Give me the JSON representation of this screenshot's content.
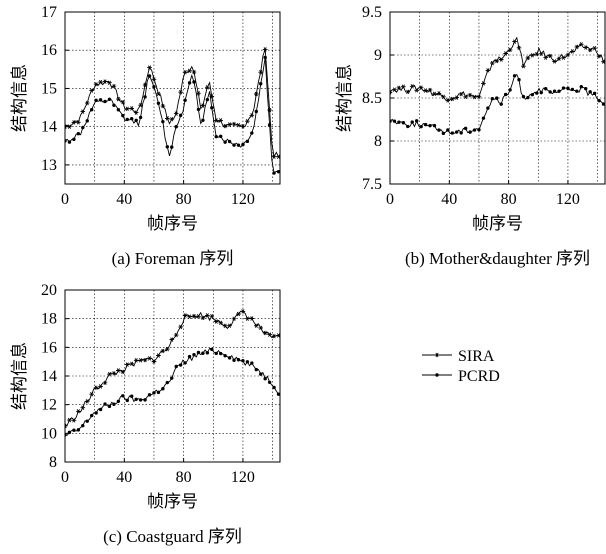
{
  "ylabel": "结构信息",
  "xlabel": "帧序号",
  "legend": {
    "entries": [
      {
        "label": "SIRA",
        "marker": "star"
      },
      {
        "label": "PCRD",
        "marker": "dot"
      }
    ]
  },
  "chart_data": [
    {
      "type": "line",
      "caption": "(a) Foreman 序列",
      "xlabel": "帧序号",
      "ylabel": "结构信息",
      "xlim": [
        0,
        145
      ],
      "ylim": [
        12.5,
        17
      ],
      "xticks": [
        0,
        40,
        80,
        120
      ],
      "yticks": [
        13,
        14,
        15,
        16,
        17
      ],
      "grid": true,
      "series": [
        {
          "name": "SIRA",
          "marker": "star",
          "x": [
            0,
            10,
            20,
            30,
            40,
            50,
            57,
            65,
            70,
            75,
            80,
            86,
            92,
            97,
            102,
            110,
            120,
            127,
            135,
            140,
            145
          ],
          "y": [
            14.0,
            14.2,
            15.1,
            15.2,
            14.5,
            14.4,
            15.6,
            14.7,
            14.1,
            14.3,
            15.4,
            15.6,
            14.4,
            15.2,
            14.2,
            14.0,
            14.0,
            14.4,
            16.1,
            13.3,
            13.2
          ]
        },
        {
          "name": "PCRD",
          "marker": "dot",
          "x": [
            0,
            10,
            20,
            30,
            40,
            50,
            57,
            65,
            70,
            75,
            80,
            86,
            92,
            97,
            102,
            110,
            120,
            127,
            135,
            140,
            145
          ],
          "y": [
            13.6,
            13.8,
            14.6,
            14.7,
            14.2,
            14.1,
            15.4,
            14.3,
            13.2,
            14.0,
            14.5,
            15.5,
            13.9,
            15.0,
            13.8,
            13.6,
            13.5,
            13.9,
            15.8,
            12.8,
            12.9
          ]
        }
      ]
    },
    {
      "type": "line",
      "caption": "(b) Mother&daughter 序列",
      "xlabel": "帧序号",
      "ylabel": "结构信息",
      "xlim": [
        0,
        145
      ],
      "ylim": [
        7.5,
        9.5
      ],
      "xticks": [
        0,
        40,
        80,
        120
      ],
      "yticks": [
        7.5,
        8,
        8.5,
        9,
        9.5
      ],
      "grid": true,
      "series": [
        {
          "name": "SIRA",
          "marker": "star",
          "x": [
            0,
            10,
            20,
            30,
            40,
            50,
            60,
            65,
            70,
            75,
            80,
            85,
            90,
            100,
            110,
            120,
            130,
            140,
            145
          ],
          "y": [
            8.6,
            8.6,
            8.62,
            8.55,
            8.5,
            8.55,
            8.5,
            8.75,
            8.95,
            8.95,
            9.05,
            9.2,
            8.9,
            9.05,
            8.95,
            9.0,
            9.1,
            9.05,
            8.9
          ]
        },
        {
          "name": "PCRD",
          "marker": "dot",
          "x": [
            0,
            10,
            20,
            30,
            40,
            50,
            60,
            65,
            70,
            75,
            80,
            85,
            90,
            100,
            110,
            120,
            130,
            140,
            145
          ],
          "y": [
            8.25,
            8.2,
            8.2,
            8.15,
            8.1,
            8.12,
            8.15,
            8.35,
            8.5,
            8.45,
            8.55,
            8.8,
            8.5,
            8.6,
            8.55,
            8.6,
            8.6,
            8.5,
            8.45
          ]
        }
      ]
    },
    {
      "type": "line",
      "caption": "(c) Coastguard 序列",
      "xlabel": "帧序号",
      "ylabel": "结构信息",
      "xlim": [
        0,
        145
      ],
      "ylim": [
        8,
        20
      ],
      "xticks": [
        0,
        40,
        80,
        120
      ],
      "yticks": [
        8,
        10,
        12,
        14,
        16,
        18,
        20
      ],
      "grid": true,
      "series": [
        {
          "name": "SIRA",
          "marker": "star",
          "x": [
            0,
            10,
            20,
            30,
            40,
            50,
            60,
            70,
            75,
            80,
            90,
            100,
            110,
            120,
            130,
            140,
            145
          ],
          "y": [
            10.5,
            11.5,
            13.0,
            14.0,
            14.5,
            15.0,
            15.2,
            16.0,
            17.0,
            18.0,
            18.3,
            18.0,
            17.5,
            18.5,
            17.5,
            16.5,
            17.0
          ]
        },
        {
          "name": "PCRD",
          "marker": "dot",
          "x": [
            0,
            10,
            20,
            30,
            40,
            50,
            60,
            70,
            75,
            80,
            90,
            100,
            110,
            120,
            130,
            140,
            145
          ],
          "y": [
            9.8,
            10.3,
            11.5,
            12.0,
            12.5,
            12.3,
            12.8,
            13.5,
            14.5,
            15.0,
            15.5,
            15.8,
            15.5,
            15.0,
            14.5,
            13.5,
            12.8
          ]
        }
      ]
    }
  ]
}
